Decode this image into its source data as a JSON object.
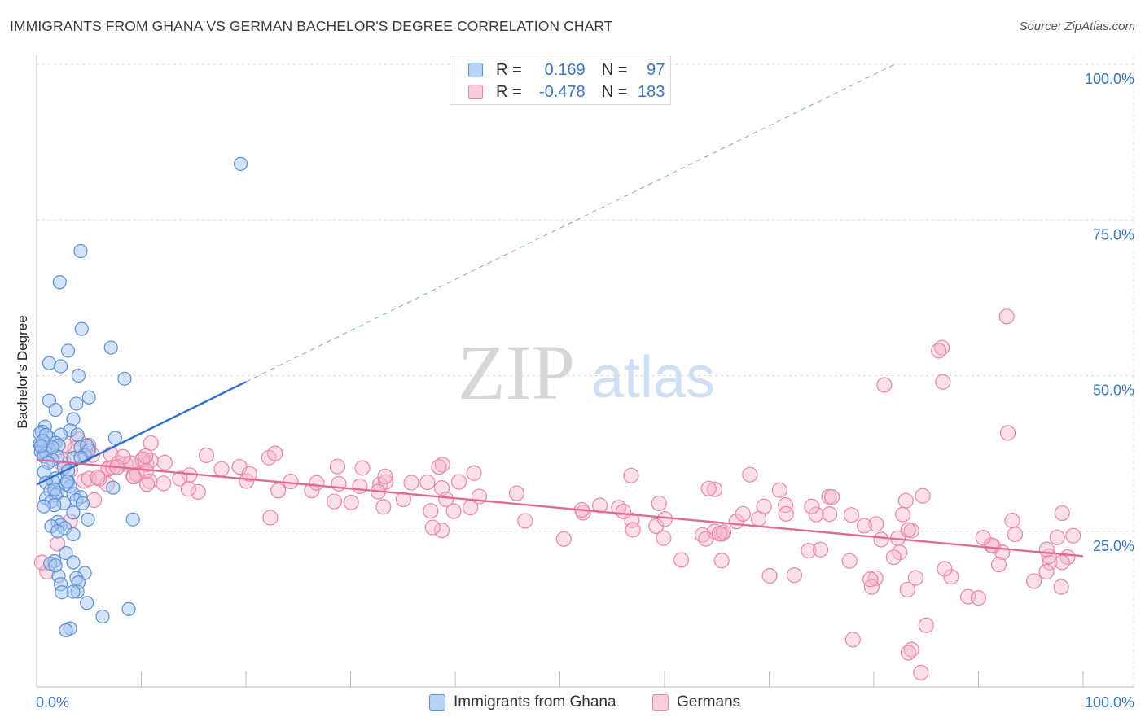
{
  "title": "IMMIGRANTS FROM GHANA VS GERMAN BACHELOR'S DEGREE CORRELATION CHART",
  "source": "Source: ZipAtlas.com",
  "watermark": {
    "zip": "ZIP",
    "atlas": "atlas"
  },
  "legend_top": {
    "rows": [
      {
        "r_label": "R =",
        "r_value": "0.169",
        "n_label": "N =",
        "n_value": "97"
      },
      {
        "r_label": "R =",
        "r_value": "-0.478",
        "n_label": "N =",
        "n_value": "183"
      }
    ]
  },
  "colors": {
    "blue_fill": "#a8c8f0",
    "blue_stroke": "#5b8fd6",
    "blue_line": "#2f6fcf",
    "pink_fill": "#f5b8cc",
    "pink_stroke": "#e886a8",
    "pink_line": "#e06a95",
    "axis_label": "#3a76c4",
    "grid": "#d8d8d8"
  },
  "chart_data": {
    "type": "scatter",
    "title": "IMMIGRANTS FROM GHANA VS GERMAN BACHELOR'S DEGREE CORRELATION CHART",
    "ylabel": "Bachelor's Degree",
    "xlabel": "",
    "xlim": [
      0,
      100
    ],
    "ylim": [
      0,
      100
    ],
    "x_tick_labels": [
      "0.0%",
      "100.0%"
    ],
    "y_ticks": [
      25,
      50,
      75,
      100
    ],
    "y_tick_labels": [
      "25.0%",
      "50.0%",
      "75.0%",
      "100.0%"
    ],
    "grid": true,
    "legend_position": "bottom",
    "series": [
      {
        "name": "Immigrants from Ghana",
        "R": 0.169,
        "N": 97,
        "trend": {
          "x0": 0,
          "y0": 32.5,
          "x1": 20,
          "y1": 49,
          "dash_to_x": 82,
          "dash_to_y": 100
        },
        "points": [
          [
            19.5,
            84
          ],
          [
            4.2,
            70
          ],
          [
            2.2,
            65
          ],
          [
            4.3,
            57.5
          ],
          [
            7.1,
            54.5
          ],
          [
            3,
            54
          ],
          [
            1.2,
            52
          ],
          [
            2.3,
            51.5
          ],
          [
            8.4,
            49.5
          ],
          [
            4,
            50
          ],
          [
            5,
            46.5
          ],
          [
            1.2,
            46
          ],
          [
            3.8,
            45.5
          ],
          [
            1.8,
            44.5
          ],
          [
            3.5,
            43
          ],
          [
            0.8,
            41.8
          ],
          [
            0.5,
            41
          ],
          [
            3.2,
            41.2
          ],
          [
            2.3,
            40.5
          ],
          [
            7.5,
            40
          ],
          [
            3.9,
            40.5
          ],
          [
            1.2,
            40
          ],
          [
            0.6,
            39.5
          ],
          [
            0.3,
            39
          ],
          [
            1.8,
            39.2
          ],
          [
            2.1,
            38.8
          ],
          [
            4.2,
            38.5
          ],
          [
            4.8,
            38.8
          ],
          [
            0.5,
            38.5
          ],
          [
            0.8,
            38
          ],
          [
            1.2,
            38.2
          ],
          [
            0.4,
            37.8
          ],
          [
            0.9,
            37.5
          ],
          [
            2,
            37
          ],
          [
            3.5,
            36.8
          ],
          [
            4.6,
            37.2
          ],
          [
            0.7,
            37
          ],
          [
            1.5,
            36.5
          ],
          [
            5,
            38
          ],
          [
            1.1,
            36
          ],
          [
            4.2,
            36.8
          ],
          [
            2.6,
            35.2
          ],
          [
            3,
            34.7
          ],
          [
            0.7,
            34.5
          ],
          [
            1.8,
            33.5
          ],
          [
            3,
            33
          ],
          [
            1.6,
            33
          ],
          [
            0.9,
            32.8
          ],
          [
            2.8,
            32.5
          ],
          [
            3.2,
            32.2
          ],
          [
            7.3,
            32
          ],
          [
            1.3,
            31.5
          ],
          [
            2,
            31.2
          ],
          [
            3.5,
            31
          ],
          [
            1.8,
            30.8
          ],
          [
            4.2,
            30.5
          ],
          [
            0.9,
            30.3
          ],
          [
            3.8,
            30
          ],
          [
            1.4,
            29.8
          ],
          [
            2.6,
            29.5
          ],
          [
            4.4,
            29.5
          ],
          [
            1.7,
            29.2
          ],
          [
            0.7,
            29
          ],
          [
            3.5,
            28
          ],
          [
            9.2,
            26.9
          ],
          [
            4.9,
            26.9
          ],
          [
            2,
            26.5
          ],
          [
            2.3,
            26
          ],
          [
            1.4,
            25.8
          ],
          [
            2.7,
            25.5
          ],
          [
            2,
            25
          ],
          [
            3.5,
            24.5
          ],
          [
            2.8,
            21.5
          ],
          [
            1.7,
            20.2
          ],
          [
            1.3,
            19.8
          ],
          [
            3.5,
            20
          ],
          [
            4.6,
            18.3
          ],
          [
            2.1,
            17.8
          ],
          [
            3.8,
            17.5
          ],
          [
            4,
            16.8
          ],
          [
            2.3,
            16.5
          ],
          [
            3.9,
            15.3
          ],
          [
            3.5,
            15.3
          ],
          [
            2.4,
            15.2
          ],
          [
            4.8,
            13.5
          ],
          [
            8.8,
            12.5
          ],
          [
            6.3,
            11.3
          ],
          [
            3.2,
            9.4
          ],
          [
            2.8,
            9.1
          ],
          [
            1.8,
            19.5
          ],
          [
            0.3,
            40.7
          ],
          [
            0.9,
            40.5
          ],
          [
            1.5,
            38.5
          ],
          [
            0.6,
            39.5
          ],
          [
            2.9,
            33
          ],
          [
            1.7,
            31.7
          ],
          [
            0.4,
            38.7
          ]
        ]
      },
      {
        "name": "Germans",
        "R": -0.478,
        "N": 183,
        "trend": {
          "x0": 0,
          "y0": 36.5,
          "x1": 100,
          "y1": 21
        }
      }
    ]
  }
}
